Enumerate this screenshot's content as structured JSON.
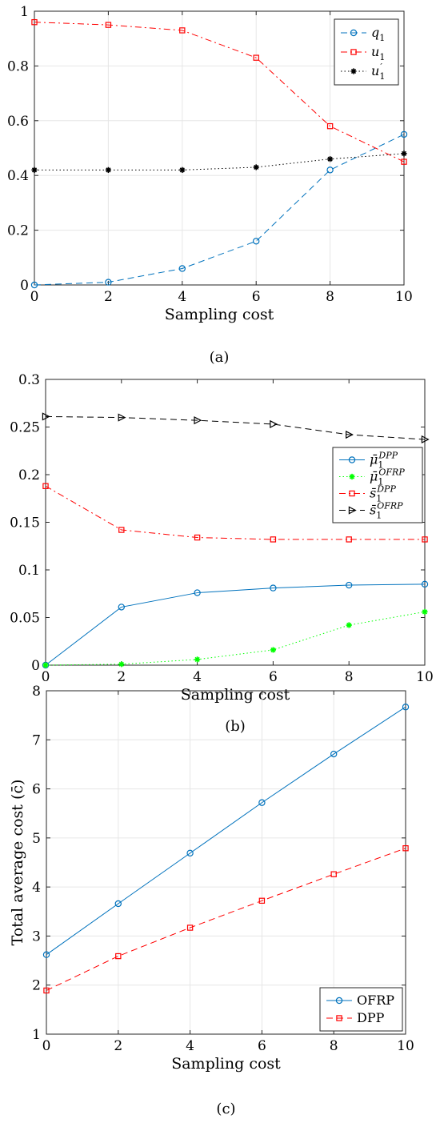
{
  "chart_data": [
    {
      "type": "line",
      "panel": "a",
      "caption": "(a)",
      "xlabel": "Sampling cost",
      "ylabel": "",
      "x": [
        0,
        2,
        4,
        6,
        8,
        10
      ],
      "xlim": [
        0,
        10
      ],
      "ylim": [
        0,
        1
      ],
      "xticks": [
        "0",
        "2",
        "4",
        "6",
        "8",
        "10"
      ],
      "yticks": [
        "0",
        "0.2",
        "0.4",
        "0.6",
        "0.8",
        "1"
      ],
      "grid": true,
      "legend_position": "top-right",
      "series": [
        {
          "name": "q1",
          "label": "q",
          "sub": "1",
          "sup": "",
          "color": "#0072BD",
          "marker": "circle",
          "dash": "dashed",
          "values": [
            0.0,
            0.01,
            0.06,
            0.16,
            0.42,
            0.55
          ]
        },
        {
          "name": "u1",
          "label": "u",
          "sub": "1",
          "sup": "",
          "color": "#FF0000",
          "marker": "square",
          "dash": "dashdot",
          "values": [
            0.96,
            0.95,
            0.93,
            0.83,
            0.58,
            0.45
          ]
        },
        {
          "name": "u'1",
          "label": "u",
          "sub": "1",
          "sup": "′",
          "color": "#000000",
          "marker": "star",
          "dash": "dotted",
          "values": [
            0.42,
            0.42,
            0.42,
            0.43,
            0.46,
            0.48
          ]
        }
      ]
    },
    {
      "type": "line",
      "panel": "b",
      "caption": "(b)",
      "xlabel": "Sampling cost",
      "ylabel": "",
      "x": [
        0,
        2,
        4,
        6,
        8,
        10
      ],
      "xlim": [
        0,
        10
      ],
      "ylim": [
        0,
        0.3
      ],
      "xticks": [
        "0",
        "2",
        "4",
        "6",
        "8",
        "10"
      ],
      "yticks": [
        "0",
        "0.05",
        "0.1",
        "0.15",
        "0.2",
        "0.25",
        "0.3"
      ],
      "grid": false,
      "legend_position": "right",
      "series": [
        {
          "name": "μ̄1 DPP",
          "label": "μ̄",
          "sub": "1",
          "sup": "DPP",
          "color": "#0072BD",
          "marker": "circle",
          "dash": "solid",
          "values": [
            0.0,
            0.061,
            0.076,
            0.081,
            0.084,
            0.085
          ]
        },
        {
          "name": "μ̄1 OFRP",
          "label": "μ̄",
          "sub": "1",
          "sup": "OFRP",
          "color": "#00FF00",
          "marker": "star",
          "dash": "dotted",
          "values": [
            0.0,
            0.001,
            0.006,
            0.016,
            0.042,
            0.056
          ]
        },
        {
          "name": "s̄1 DPP",
          "label": "s̄",
          "sub": "1",
          "sup": "DPP",
          "color": "#FF0000",
          "marker": "square",
          "dash": "dashdot",
          "values": [
            0.188,
            0.142,
            0.134,
            0.132,
            0.132,
            0.132
          ]
        },
        {
          "name": "s̄1 OFRP",
          "label": "s̄",
          "sub": "1",
          "sup": "OFRP",
          "color": "#000000",
          "marker": "triangle-right",
          "dash": "dashed",
          "values": [
            0.261,
            0.26,
            0.257,
            0.253,
            0.242,
            0.237
          ]
        }
      ]
    },
    {
      "type": "line",
      "panel": "c",
      "caption": "(c)",
      "xlabel": "Sampling cost",
      "ylabel": "Total average cost (c̄)",
      "x": [
        0,
        2,
        4,
        6,
        8,
        10
      ],
      "xlim": [
        0,
        10
      ],
      "ylim": [
        1,
        8
      ],
      "xticks": [
        "0",
        "2",
        "4",
        "6",
        "8",
        "10"
      ],
      "yticks": [
        "1",
        "2",
        "3",
        "4",
        "5",
        "6",
        "7",
        "8"
      ],
      "grid": true,
      "legend_position": "bottom-right",
      "series": [
        {
          "name": "OFRP",
          "label": "OFRP",
          "sub": "",
          "sup": "",
          "color": "#0072BD",
          "marker": "circle",
          "dash": "solid",
          "values": [
            2.62,
            3.66,
            4.69,
            5.72,
            6.71,
            7.67
          ]
        },
        {
          "name": "DPP",
          "label": "DPP",
          "sub": "",
          "sup": "",
          "color": "#FF0000",
          "marker": "square",
          "dash": "dashed",
          "values": [
            1.89,
            2.59,
            3.17,
            3.72,
            4.26,
            4.79
          ]
        }
      ]
    }
  ]
}
